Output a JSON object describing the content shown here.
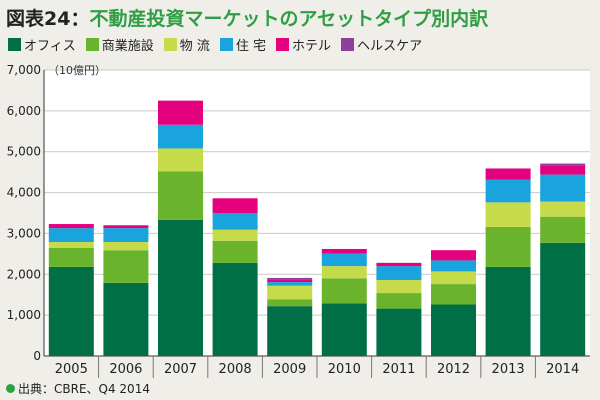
{
  "title_number": "図表24",
  "title_sep": "：",
  "title_text": "不動産投資マーケットのアセットタイプ別内訳",
  "source": "出典：CBRE、Q4 2014",
  "chart_data": {
    "type": "bar",
    "stacked": true,
    "unit_label": "（10億円）",
    "categories": [
      "2005",
      "2006",
      "2007",
      "2008",
      "2009",
      "2010",
      "2011",
      "2012",
      "2013",
      "2014"
    ],
    "ylim": [
      0,
      7000
    ],
    "yticks": [
      0,
      1000,
      2000,
      3000,
      4000,
      5000,
      6000,
      7000
    ],
    "ytick_labels": [
      "0",
      "1,000",
      "2,000",
      "3,000",
      "4,000",
      "5,000",
      "6,000",
      "7,000"
    ],
    "grid": true,
    "legend_position": "top-left",
    "series": [
      {
        "name": "オフィス",
        "color": "#006f46",
        "values": [
          2180,
          1790,
          3330,
          2280,
          1220,
          1290,
          1160,
          1260,
          2180,
          2770
        ]
      },
      {
        "name": "商業施設",
        "color": "#6ab42d",
        "values": [
          470,
          800,
          1190,
          540,
          170,
          610,
          380,
          500,
          980,
          640
        ]
      },
      {
        "name": "物 流",
        "color": "#c6db4a",
        "values": [
          140,
          200,
          560,
          270,
          330,
          300,
          320,
          310,
          600,
          370
        ]
      },
      {
        "name": "住 宅",
        "color": "#1aa4dd",
        "values": [
          340,
          340,
          580,
          410,
          90,
          310,
          340,
          270,
          560,
          660
        ]
      },
      {
        "name": "ホテル",
        "color": "#e5007e",
        "values": [
          100,
          70,
          590,
          360,
          70,
          110,
          80,
          250,
          270,
          230
        ]
      },
      {
        "name": "ヘルスケア",
        "color": "#8e3f9c",
        "values": [
          0,
          0,
          0,
          0,
          30,
          0,
          0,
          0,
          0,
          40
        ]
      }
    ]
  }
}
